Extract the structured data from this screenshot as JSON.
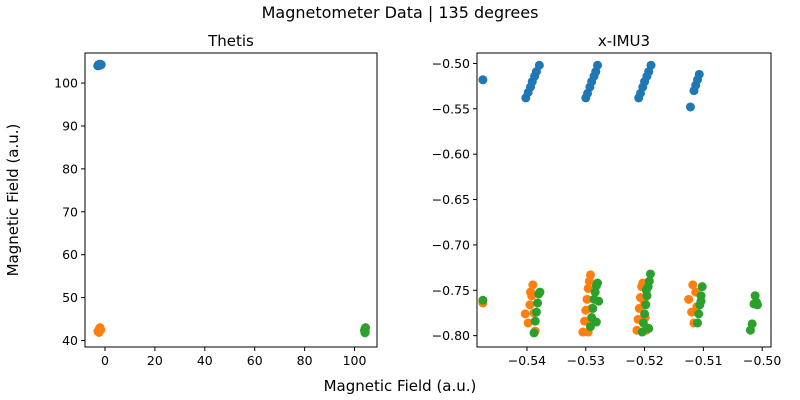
{
  "figure": {
    "suptitle": "Magnetometer Data | 135 degrees",
    "supxlabel": "Magnetic Field (a.u.)",
    "supylabel": "Magnetic Field (a.u.)"
  },
  "chart_data": [
    {
      "type": "scatter",
      "title": "Thetis",
      "xlim": [
        -8,
        109
      ],
      "ylim": [
        38.5,
        107
      ],
      "xticks": [
        0,
        20,
        40,
        60,
        80,
        100
      ],
      "xtick_labels": [
        "0",
        "20",
        "40",
        "60",
        "80",
        "100"
      ],
      "yticks": [
        40,
        50,
        60,
        70,
        80,
        90,
        100
      ],
      "ytick_labels": [
        "40",
        "50",
        "60",
        "70",
        "80",
        "90",
        "100"
      ],
      "grid": false,
      "series": [
        {
          "color": "#1f77b4",
          "points": [
            [
              -2.6,
              104.3
            ],
            [
              -2.3,
              104.1
            ],
            [
              -2.0,
              104.4
            ],
            [
              -1.8,
              104.2
            ],
            [
              -2.9,
              104.0
            ],
            [
              -1.5,
              104.3
            ]
          ]
        },
        {
          "color": "#ff7f0e",
          "points": [
            [
              -2.5,
              42.4
            ],
            [
              -2.2,
              42.8
            ],
            [
              -2.0,
              43.0
            ],
            [
              -2.8,
              42.1
            ],
            [
              -1.7,
              42.5
            ],
            [
              -2.4,
              41.9
            ]
          ]
        },
        {
          "color": "#2ca02c",
          "points": [
            [
              104.3,
              42.0
            ],
            [
              104.1,
              42.6
            ],
            [
              104.4,
              43.0
            ],
            [
              104.2,
              41.8
            ],
            [
              104.0,
              42.3
            ],
            [
              104.3,
              42.8
            ]
          ]
        }
      ]
    },
    {
      "type": "scatter",
      "title": "x-IMU3",
      "xlim": [
        -0.5485,
        -0.4985
      ],
      "ylim": [
        -0.8125,
        -0.4885
      ],
      "xticks": [
        -0.54,
        -0.53,
        -0.52,
        -0.51,
        -0.5
      ],
      "xtick_labels": [
        "−0.54",
        "−0.53",
        "−0.52",
        "−0.51",
        "−0.50"
      ],
      "yticks": [
        -0.8,
        -0.75,
        -0.7,
        -0.65,
        -0.6,
        -0.55,
        -0.5
      ],
      "ytick_labels": [
        "−0.80",
        "−0.75",
        "−0.70",
        "−0.65",
        "−0.60",
        "−0.55",
        "−0.50"
      ],
      "grid": false,
      "series": [
        {
          "color": "#1f77b4",
          "points": [
            [
              -0.5475,
              -0.518
            ],
            [
              -0.5402,
              -0.538
            ],
            [
              -0.5398,
              -0.532
            ],
            [
              -0.5394,
              -0.526
            ],
            [
              -0.5391,
              -0.52
            ],
            [
              -0.5387,
              -0.514
            ],
            [
              -0.5384,
              -0.509
            ],
            [
              -0.5379,
              -0.502
            ],
            [
              -0.53,
              -0.538
            ],
            [
              -0.5297,
              -0.533
            ],
            [
              -0.5293,
              -0.526
            ],
            [
              -0.529,
              -0.52
            ],
            [
              -0.5286,
              -0.514
            ],
            [
              -0.5283,
              -0.509
            ],
            [
              -0.528,
              -0.502
            ],
            [
              -0.521,
              -0.538
            ],
            [
              -0.5207,
              -0.533
            ],
            [
              -0.5203,
              -0.526
            ],
            [
              -0.52,
              -0.52
            ],
            [
              -0.5196,
              -0.514
            ],
            [
              -0.5193,
              -0.509
            ],
            [
              -0.5189,
              -0.502
            ],
            [
              -0.5122,
              -0.548
            ],
            [
              -0.5116,
              -0.53
            ],
            [
              -0.5113,
              -0.524
            ],
            [
              -0.511,
              -0.518
            ],
            [
              -0.5107,
              -0.512
            ]
          ]
        },
        {
          "color": "#ff7f0e",
          "points": [
            [
              -0.5475,
              -0.764
            ],
            [
              -0.5403,
              -0.776
            ],
            [
              -0.5398,
              -0.786
            ],
            [
              -0.5395,
              -0.766
            ],
            [
              -0.5392,
              -0.756
            ],
            [
              -0.539,
              -0.744
            ],
            [
              -0.5388,
              -0.775
            ],
            [
              -0.5386,
              -0.795
            ],
            [
              -0.5394,
              -0.752
            ],
            [
              -0.5305,
              -0.796
            ],
            [
              -0.5302,
              -0.784
            ],
            [
              -0.53,
              -0.772
            ],
            [
              -0.5298,
              -0.76
            ],
            [
              -0.5296,
              -0.748
            ],
            [
              -0.5294,
              -0.74
            ],
            [
              -0.5292,
              -0.733
            ],
            [
              -0.529,
              -0.77
            ],
            [
              -0.5293,
              -0.786
            ],
            [
              -0.5296,
              -0.796
            ],
            [
              -0.5213,
              -0.794
            ],
            [
              -0.5211,
              -0.782
            ],
            [
              -0.5209,
              -0.77
            ],
            [
              -0.5207,
              -0.758
            ],
            [
              -0.5205,
              -0.746
            ],
            [
              -0.5203,
              -0.742
            ],
            [
              -0.5201,
              -0.762
            ],
            [
              -0.5199,
              -0.78
            ],
            [
              -0.5197,
              -0.794
            ],
            [
              -0.5125,
              -0.76
            ],
            [
              -0.512,
              -0.774
            ],
            [
              -0.5118,
              -0.744
            ],
            [
              -0.5116,
              -0.786
            ],
            [
              -0.5113,
              -0.752
            ],
            [
              -0.5111,
              -0.768
            ]
          ]
        },
        {
          "color": "#2ca02c",
          "points": [
            [
              -0.5475,
              -0.761
            ],
            [
              -0.5388,
              -0.797
            ],
            [
              -0.5386,
              -0.784
            ],
            [
              -0.5384,
              -0.774
            ],
            [
              -0.5382,
              -0.764
            ],
            [
              -0.538,
              -0.754
            ],
            [
              -0.5378,
              -0.752
            ],
            [
              -0.5292,
              -0.79
            ],
            [
              -0.529,
              -0.78
            ],
            [
              -0.5288,
              -0.77
            ],
            [
              -0.5286,
              -0.76
            ],
            [
              -0.5284,
              -0.752
            ],
            [
              -0.5282,
              -0.745
            ],
            [
              -0.528,
              -0.742
            ],
            [
              -0.5278,
              -0.762
            ],
            [
              -0.5282,
              -0.785
            ],
            [
              -0.5204,
              -0.796
            ],
            [
              -0.5202,
              -0.786
            ],
            [
              -0.52,
              -0.776
            ],
            [
              -0.5198,
              -0.766
            ],
            [
              -0.5196,
              -0.756
            ],
            [
              -0.5194,
              -0.746
            ],
            [
              -0.5192,
              -0.74
            ],
            [
              -0.519,
              -0.732
            ],
            [
              -0.5193,
              -0.792
            ],
            [
              -0.5197,
              -0.75
            ],
            [
              -0.511,
              -0.786
            ],
            [
              -0.5108,
              -0.776
            ],
            [
              -0.5106,
              -0.766
            ],
            [
              -0.5104,
              -0.756
            ],
            [
              -0.5102,
              -0.746
            ],
            [
              -0.5104,
              -0.762
            ],
            [
              -0.502,
              -0.794
            ],
            [
              -0.5017,
              -0.787
            ],
            [
              -0.5014,
              -0.765
            ],
            [
              -0.5012,
              -0.756
            ],
            [
              -0.501,
              -0.763
            ],
            [
              -0.5008,
              -0.766
            ]
          ]
        }
      ]
    }
  ]
}
